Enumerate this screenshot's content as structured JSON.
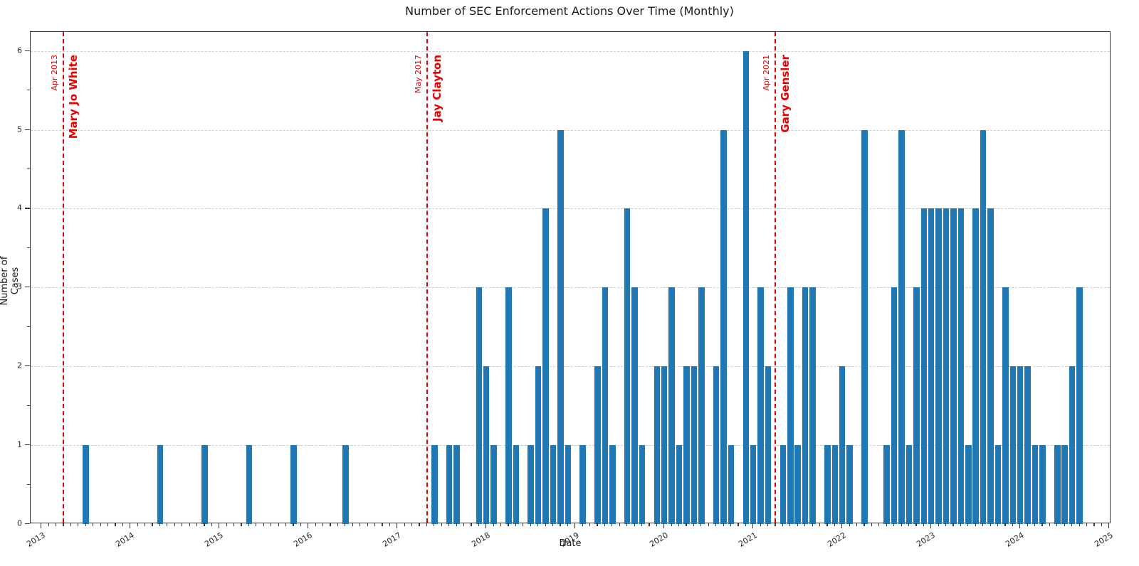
{
  "figure": {
    "title": "Number of SEC Enforcement Actions Over Time (Monthly)",
    "xlabel": "Date",
    "ylabel": "Number of Cases"
  },
  "chart_data": {
    "type": "bar",
    "title": "Number of SEC Enforcement Actions Over Time (Monthly)",
    "xlabel": "Date",
    "ylabel": "Number of Cases",
    "bar_color": "#1f77b4",
    "annotation_color": "#e60000",
    "grid": "horizontal dotted, y=1..6",
    "legend": "none",
    "x_axis_years": [
      2013,
      2014,
      2015,
      2016,
      2017,
      2018,
      2019,
      2020,
      2021,
      2022,
      2023,
      2024,
      2025
    ],
    "yticks": [
      0,
      1,
      2,
      3,
      4,
      5,
      6
    ],
    "ylim": [
      0,
      6.25
    ],
    "series": [
      {
        "date": "2013-07",
        "value": 1
      },
      {
        "date": "2014-05",
        "value": 1
      },
      {
        "date": "2014-11",
        "value": 1
      },
      {
        "date": "2015-05",
        "value": 1
      },
      {
        "date": "2015-11",
        "value": 1
      },
      {
        "date": "2016-06",
        "value": 1
      },
      {
        "date": "2017-06",
        "value": 1
      },
      {
        "date": "2017-08",
        "value": 1
      },
      {
        "date": "2017-09",
        "value": 1
      },
      {
        "date": "2017-12",
        "value": 3
      },
      {
        "date": "2018-01",
        "value": 2
      },
      {
        "date": "2018-02",
        "value": 1
      },
      {
        "date": "2018-04",
        "value": 3
      },
      {
        "date": "2018-05",
        "value": 1
      },
      {
        "date": "2018-07",
        "value": 1
      },
      {
        "date": "2018-08",
        "value": 2
      },
      {
        "date": "2018-09",
        "value": 4
      },
      {
        "date": "2018-10",
        "value": 1
      },
      {
        "date": "2018-11",
        "value": 5
      },
      {
        "date": "2018-12",
        "value": 1
      },
      {
        "date": "2019-02",
        "value": 1
      },
      {
        "date": "2019-04",
        "value": 2
      },
      {
        "date": "2019-05",
        "value": 3
      },
      {
        "date": "2019-06",
        "value": 1
      },
      {
        "date": "2019-08",
        "value": 4
      },
      {
        "date": "2019-09",
        "value": 3
      },
      {
        "date": "2019-10",
        "value": 1
      },
      {
        "date": "2019-12",
        "value": 2
      },
      {
        "date": "2020-01",
        "value": 2
      },
      {
        "date": "2020-02",
        "value": 3
      },
      {
        "date": "2020-03",
        "value": 1
      },
      {
        "date": "2020-04",
        "value": 2
      },
      {
        "date": "2020-05",
        "value": 2
      },
      {
        "date": "2020-06",
        "value": 3
      },
      {
        "date": "2020-08",
        "value": 2
      },
      {
        "date": "2020-09",
        "value": 5
      },
      {
        "date": "2020-10",
        "value": 1
      },
      {
        "date": "2020-12",
        "value": 6
      },
      {
        "date": "2021-01",
        "value": 1
      },
      {
        "date": "2021-02",
        "value": 3
      },
      {
        "date": "2021-03",
        "value": 2
      },
      {
        "date": "2021-05",
        "value": 1
      },
      {
        "date": "2021-06",
        "value": 3
      },
      {
        "date": "2021-07",
        "value": 1
      },
      {
        "date": "2021-08",
        "value": 3
      },
      {
        "date": "2021-09",
        "value": 3
      },
      {
        "date": "2021-11",
        "value": 1
      },
      {
        "date": "2021-12",
        "value": 1
      },
      {
        "date": "2022-01",
        "value": 2
      },
      {
        "date": "2022-02",
        "value": 1
      },
      {
        "date": "2022-04",
        "value": 5
      },
      {
        "date": "2022-07",
        "value": 1
      },
      {
        "date": "2022-08",
        "value": 3
      },
      {
        "date": "2022-09",
        "value": 5
      },
      {
        "date": "2022-10",
        "value": 1
      },
      {
        "date": "2022-11",
        "value": 3
      },
      {
        "date": "2022-12",
        "value": 4
      },
      {
        "date": "2023-01",
        "value": 4
      },
      {
        "date": "2023-02",
        "value": 4
      },
      {
        "date": "2023-03",
        "value": 4
      },
      {
        "date": "2023-04",
        "value": 4
      },
      {
        "date": "2023-05",
        "value": 4
      },
      {
        "date": "2023-06",
        "value": 1
      },
      {
        "date": "2023-07",
        "value": 4
      },
      {
        "date": "2023-08",
        "value": 5
      },
      {
        "date": "2023-09",
        "value": 4
      },
      {
        "date": "2023-10",
        "value": 1
      },
      {
        "date": "2023-11",
        "value": 3
      },
      {
        "date": "2023-12",
        "value": 2
      },
      {
        "date": "2024-01",
        "value": 2
      },
      {
        "date": "2024-02",
        "value": 2
      },
      {
        "date": "2024-03",
        "value": 1
      },
      {
        "date": "2024-04",
        "value": 1
      },
      {
        "date": "2024-06",
        "value": 1
      },
      {
        "date": "2024-07",
        "value": 1
      },
      {
        "date": "2024-08",
        "value": 2
      },
      {
        "date": "2024-09",
        "value": 3
      }
    ],
    "annotations": [
      {
        "date_label": "Apr 2013",
        "name": "Mary Jo White",
        "x": "2013-04"
      },
      {
        "date_label": "May 2017",
        "name": "Jay Clayton",
        "x": "2017-05"
      },
      {
        "date_label": "Apr 2021",
        "name": "Gary Gensler",
        "x": "2021-04"
      }
    ]
  }
}
